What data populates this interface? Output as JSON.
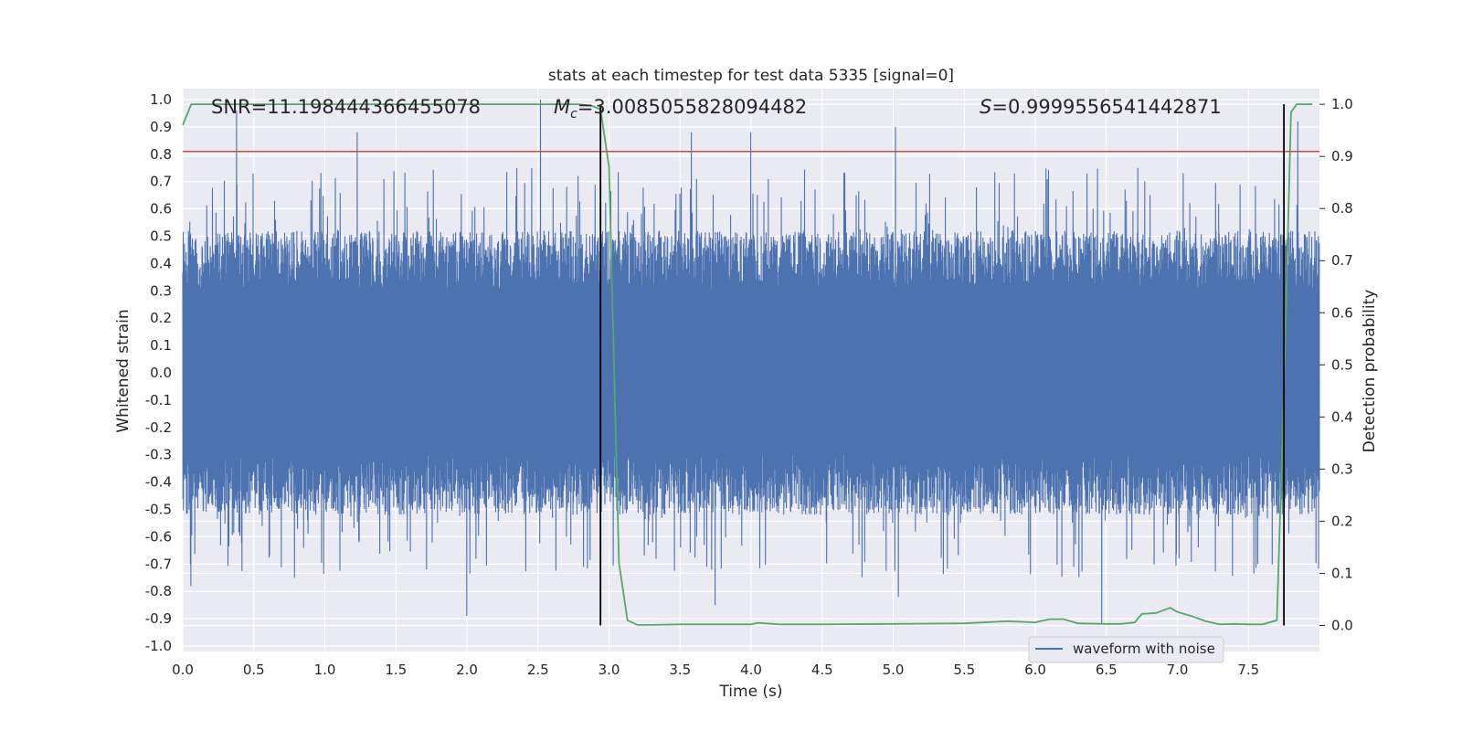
{
  "chart_data": {
    "type": "line",
    "title": "stats at each timestep for test data 5335 [signal=0]",
    "xlabel": "Time (s)",
    "ylabel": "Whitened strain",
    "ylabel_right": "Detection probability",
    "xlim": [
      0.0,
      8.0
    ],
    "ylim": [
      -1.02,
      1.04
    ],
    "ylim_right": [
      -0.05,
      1.03
    ],
    "x_ticks": [
      "0.0",
      "0.5",
      "1.0",
      "1.5",
      "2.0",
      "2.5",
      "3.0",
      "3.5",
      "4.0",
      "4.5",
      "5.0",
      "5.5",
      "6.0",
      "6.5",
      "7.0",
      "7.5"
    ],
    "y_ticks": [
      "1.0",
      "0.9",
      "0.8",
      "0.7",
      "0.6",
      "0.5",
      "0.4",
      "0.3",
      "0.2",
      "0.1",
      "0.0",
      "-0.1",
      "-0.2",
      "-0.3",
      "-0.4",
      "-0.5",
      "-0.6",
      "-0.7",
      "-0.8",
      "-0.9",
      "-1.0"
    ],
    "y_ticks_right": [
      "1.0",
      "0.9",
      "0.8",
      "0.7",
      "0.6",
      "0.5",
      "0.4",
      "0.3",
      "0.2",
      "0.1",
      "0.0"
    ],
    "grid": true,
    "legend_position": "lower-right",
    "annotations": {
      "snr": "SNR=11.198444366455078",
      "mc_symbol": "M",
      "mc_sub": "c",
      "mc_value": "=3.0085055828094482",
      "s_symbol": "S",
      "s_value": "=0.9999556541442871"
    },
    "threshold": {
      "value": 0.81
    },
    "vlines_x": [
      2.94,
      7.75
    ],
    "series": [
      {
        "name": "waveform with noise",
        "color": "#4c72b0",
        "description": "dense noise trace, typical envelope +/-0.45, peaks to about +/-0.95",
        "x_range": [
          0.0,
          8.0
        ],
        "peaks": [
          {
            "x": 0.38,
            "y": 0.96
          },
          {
            "x": 2.52,
            "y": 1.0
          },
          {
            "x": 1.23,
            "y": 0.88
          },
          {
            "x": 3.58,
            "y": 0.88
          },
          {
            "x": 4.0,
            "y": 0.88
          },
          {
            "x": 5.02,
            "y": 0.9
          },
          {
            "x": 7.85,
            "y": 0.92
          },
          {
            "x": 2.0,
            "y": -0.89
          },
          {
            "x": 6.47,
            "y": -0.92
          },
          {
            "x": 5.04,
            "y": -0.82
          },
          {
            "x": 3.75,
            "y": -0.85
          },
          {
            "x": 0.06,
            "y": -0.78
          }
        ]
      },
      {
        "name": "",
        "axis": "right",
        "color": "#55a868",
        "x": [
          0.0,
          0.06,
          0.5,
          1.0,
          1.5,
          2.0,
          2.5,
          2.78,
          2.88,
          2.94,
          3.0,
          3.07,
          3.13,
          3.2,
          3.3,
          3.5,
          4.0,
          4.05,
          4.2,
          4.5,
          5.0,
          5.5,
          5.8,
          6.0,
          6.1,
          6.2,
          6.3,
          6.5,
          6.6,
          6.7,
          6.75,
          6.85,
          6.95,
          7.0,
          7.1,
          7.2,
          7.3,
          7.4,
          7.5,
          7.6,
          7.7,
          7.75,
          7.8,
          7.84,
          7.95
        ],
        "y": [
          0.96,
          1.0,
          1.0,
          1.0,
          1.0,
          1.0,
          1.0,
          1.0,
          0.997,
          0.99,
          0.88,
          0.12,
          0.01,
          0.001,
          0.001,
          0.002,
          0.002,
          0.005,
          0.002,
          0.002,
          0.003,
          0.004,
          0.008,
          0.006,
          0.012,
          0.012,
          0.004,
          0.003,
          0.003,
          0.006,
          0.022,
          0.024,
          0.034,
          0.026,
          0.018,
          0.008,
          0.002,
          0.003,
          0.002,
          0.002,
          0.01,
          0.45,
          0.985,
          1.0,
          1.0
        ]
      }
    ]
  }
}
